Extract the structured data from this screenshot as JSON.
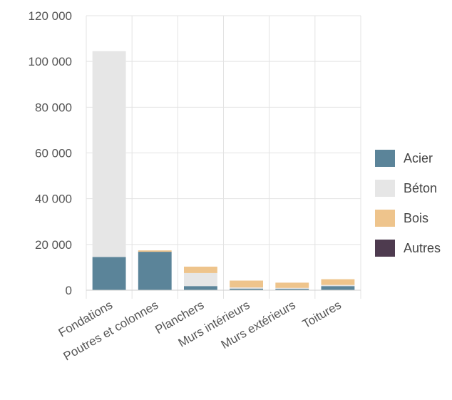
{
  "chart_data": {
    "type": "bar",
    "stacked": true,
    "categories": [
      "Fondations",
      "Poutres et colonnes",
      "Planchers",
      "Murs intérieurs",
      "Murs extérieurs",
      "Toitures"
    ],
    "series": [
      {
        "name": "Acier",
        "color": "#5b8499",
        "values": [
          14500,
          16800,
          1800,
          700,
          600,
          1800
        ]
      },
      {
        "name": "Béton",
        "color": "#e6e6e6",
        "values": [
          90000,
          0,
          5700,
          500,
          400,
          500
        ]
      },
      {
        "name": "Bois",
        "color": "#eec48c",
        "values": [
          0,
          600,
          2800,
          3000,
          2300,
          2500
        ]
      },
      {
        "name": "Autres",
        "color": "#4e3b4f",
        "values": [
          0,
          0,
          0,
          0,
          0,
          0
        ]
      }
    ],
    "yticks": [
      "0",
      "20 000",
      "40 000",
      "60 000",
      "80 000",
      "100 000",
      "120 000"
    ],
    "ylim": [
      0,
      120000
    ],
    "grid": true,
    "legend_position": "right",
    "title": "",
    "xlabel": "",
    "ylabel": ""
  }
}
